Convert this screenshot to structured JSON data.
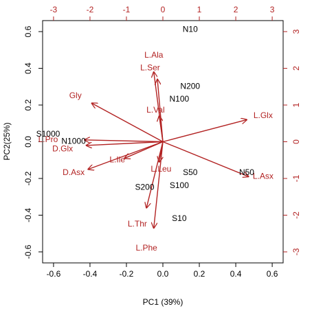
{
  "chart_data": {
    "type": "biplot",
    "title": "",
    "xlabel": "PC1 (39%)",
    "ylabel": "PC2(25%)",
    "xlim": [
      -0.66,
      0.66
    ],
    "ylim": [
      -0.66,
      0.66
    ],
    "xticks": [
      "-0.6",
      "-0.4",
      "-0.2",
      "0.0",
      "0.2",
      "0.4",
      "0.6"
    ],
    "yticks": [
      "-0.6",
      "-0.4",
      "-0.2",
      "0.0",
      "0.2",
      "0.4",
      "0.6"
    ],
    "top_xticks": [
      "-3",
      "-2",
      "-1",
      "0",
      "1",
      "2",
      "3"
    ],
    "right_yticks": [
      "-3",
      "-2",
      "-1",
      "0",
      "1",
      "2",
      "3"
    ],
    "observations": [
      {
        "label": "N10",
        "x": 0.15,
        "y": 0.61
      },
      {
        "label": "N200",
        "x": 0.15,
        "y": 0.3
      },
      {
        "label": "N100",
        "x": 0.09,
        "y": 0.23
      },
      {
        "label": "S1000",
        "x": -0.63,
        "y": 0.04
      },
      {
        "label": "N1000",
        "x": -0.49,
        "y": 0.0
      },
      {
        "label": "S50",
        "x": 0.15,
        "y": -0.17
      },
      {
        "label": "N50",
        "x": 0.46,
        "y": -0.17
      },
      {
        "label": "S100",
        "x": 0.09,
        "y": -0.24
      },
      {
        "label": "S200",
        "x": -0.1,
        "y": -0.25
      },
      {
        "label": "S10",
        "x": 0.09,
        "y": -0.42
      }
    ],
    "variables": [
      {
        "label": "L.Ala",
        "x": -0.05,
        "y": 0.38,
        "tx": -0.05,
        "ty": 0.47
      },
      {
        "label": "L.Ser",
        "x": -0.03,
        "y": 0.34,
        "tx": -0.07,
        "ty": 0.4
      },
      {
        "label": "Gly",
        "x": -0.39,
        "y": 0.21,
        "tx": -0.48,
        "ty": 0.25
      },
      {
        "label": "L.Val",
        "x": -0.02,
        "y": 0.14,
        "tx": -0.04,
        "ty": 0.17
      },
      {
        "label": "L.Glx",
        "x": 0.46,
        "y": 0.12,
        "tx": 0.55,
        "ty": 0.14
      },
      {
        "label": "L.Pro",
        "x": -0.43,
        "y": 0.01,
        "tx": -0.63,
        "ty": 0.01
      },
      {
        "label": "D.Glx",
        "x": -0.42,
        "y": -0.02,
        "tx": -0.55,
        "ty": -0.04
      },
      {
        "label": "L.Ile",
        "x": -0.21,
        "y": -0.09,
        "tx": -0.25,
        "ty": -0.1
      },
      {
        "label": "L.Leu",
        "x": -0.02,
        "y": -0.11,
        "tx": -0.01,
        "ty": -0.15
      },
      {
        "label": "D.Asx",
        "x": -0.41,
        "y": -0.15,
        "tx": -0.49,
        "ty": -0.17
      },
      {
        "label": "L.Asx",
        "x": 0.47,
        "y": -0.19,
        "tx": 0.55,
        "ty": -0.19
      },
      {
        "label": "L.Thr",
        "x": -0.09,
        "y": -0.36,
        "tx": -0.14,
        "ty": -0.45
      },
      {
        "label": "L.Phe",
        "x": -0.05,
        "y": -0.47,
        "tx": -0.09,
        "ty": -0.58
      }
    ],
    "colors": {
      "variables": "#b22222",
      "observations": "#000000"
    }
  }
}
